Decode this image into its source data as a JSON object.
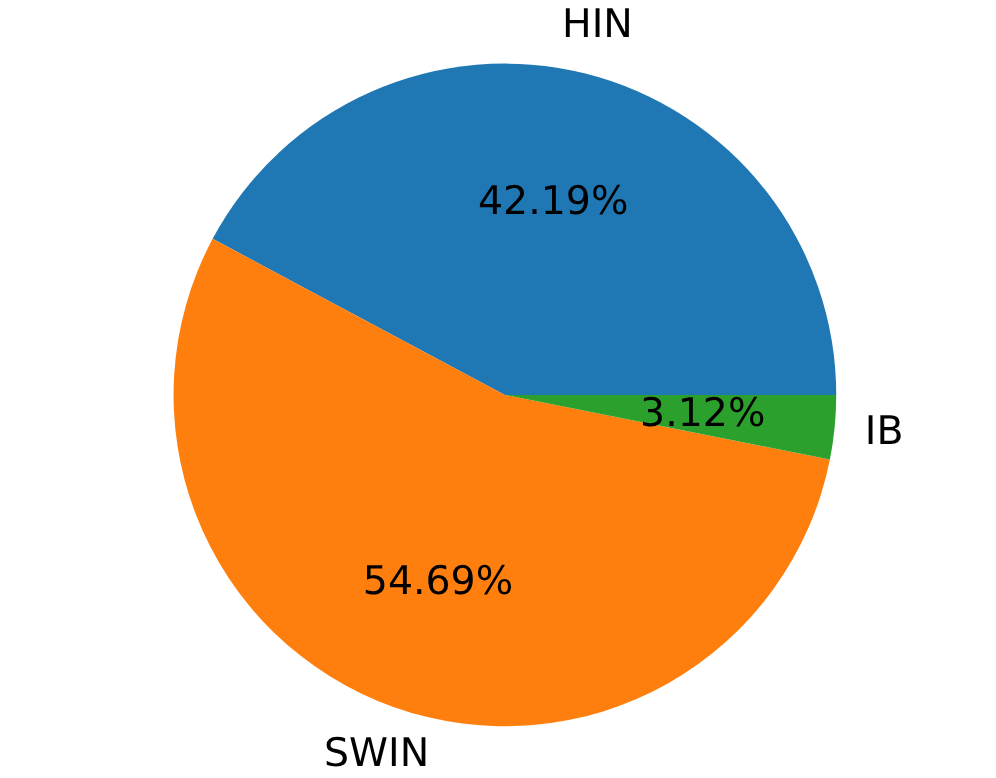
{
  "chart_data": {
    "type": "pie",
    "categories": [
      "HIN",
      "SWIN",
      "IB"
    ],
    "values": [
      42.19,
      54.69,
      3.12
    ],
    "value_labels": [
      "42.19%",
      "54.69%",
      "3.12%"
    ],
    "colors": [
      "#1f77b4",
      "#ff7f0e",
      "#2ca02c"
    ]
  }
}
